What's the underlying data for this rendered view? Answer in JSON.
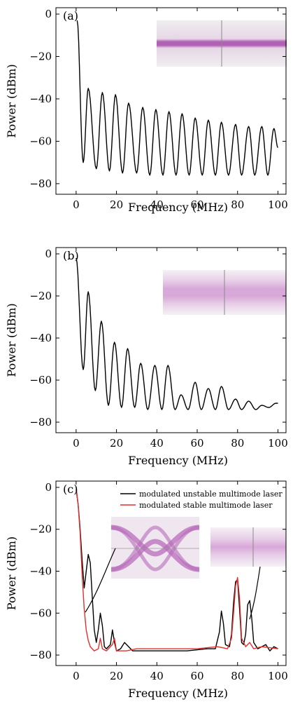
{
  "chart_data": [
    {
      "type": "line",
      "panel_label": "(a)",
      "xlabel": "Frequency (MHz)",
      "ylabel": "Power (dBm)",
      "xlim": [
        -10,
        104
      ],
      "ylim": [
        -85,
        3
      ],
      "xticks": [
        0,
        20,
        40,
        60,
        80,
        100
      ],
      "yticks": [
        0,
        -20,
        -40,
        -60,
        -80
      ],
      "inset": "eye-narrow-band",
      "series": [
        {
          "color": "#000000",
          "peaks": [
            [
              0.5,
              -3
            ],
            [
              6,
              -35
            ],
            [
              13,
              -37
            ],
            [
              19.5,
              -38
            ],
            [
              26,
              -42
            ],
            [
              33,
              -44
            ],
            [
              39.5,
              -45
            ],
            [
              46,
              -46
            ],
            [
              52.5,
              -47
            ],
            [
              59,
              -49
            ],
            [
              65.5,
              -50
            ],
            [
              72,
              -51
            ],
            [
              79,
              -52
            ],
            [
              85.5,
              -53
            ],
            [
              92,
              -53
            ],
            [
              98,
              -54
            ]
          ],
          "troughs": [
            [
              3.5,
              -70
            ],
            [
              10,
              -73
            ],
            [
              16.5,
              -74
            ],
            [
              23,
              -75
            ],
            [
              30,
              -75
            ],
            [
              36.5,
              -76
            ],
            [
              43,
              -76
            ],
            [
              49.5,
              -76
            ],
            [
              56,
              -76
            ],
            [
              62.5,
              -76
            ],
            [
              69,
              -76
            ],
            [
              75.5,
              -76
            ],
            [
              82,
              -76
            ],
            [
              88.5,
              -76
            ],
            [
              95,
              -76
            ]
          ],
          "end": [
            100,
            -63
          ]
        }
      ]
    },
    {
      "type": "line",
      "panel_label": "(b)",
      "xlabel": "Frequency (MHz)",
      "ylabel": "Power (dBm)",
      "xlim": [
        -10,
        104
      ],
      "ylim": [
        -85,
        3
      ],
      "xticks": [
        0,
        20,
        40,
        60,
        80,
        100
      ],
      "yticks": [
        0,
        -20,
        -40,
        -60,
        -80
      ],
      "inset": "eye-diffuse-band",
      "series": [
        {
          "color": "#000000",
          "peaks": [
            [
              0,
              -2
            ],
            [
              6,
              -18
            ],
            [
              12.5,
              -32
            ],
            [
              19,
              -42
            ],
            [
              25.5,
              -45
            ],
            [
              32,
              -52
            ],
            [
              39,
              -53
            ],
            [
              45.5,
              -53
            ],
            [
              52,
              -67
            ],
            [
              59,
              -61
            ],
            [
              65.5,
              -64
            ],
            [
              72,
              -63
            ],
            [
              79,
              -69
            ],
            [
              85.5,
              -70
            ],
            [
              92,
              -72
            ],
            [
              99,
              -71
            ]
          ],
          "troughs": [
            [
              3.5,
              -55
            ],
            [
              9.5,
              -65
            ],
            [
              16,
              -72
            ],
            [
              22.5,
              -73
            ],
            [
              29,
              -73
            ],
            [
              35.5,
              -74
            ],
            [
              42.5,
              -74
            ],
            [
              49,
              -74
            ],
            [
              55.5,
              -74
            ],
            [
              62,
              -74
            ],
            [
              69,
              -74
            ],
            [
              75.5,
              -74
            ],
            [
              82,
              -74
            ],
            [
              89,
              -74
            ],
            [
              95.5,
              -73
            ]
          ],
          "end": [
            100,
            -71
          ]
        }
      ]
    },
    {
      "type": "line",
      "panel_label": "(c)",
      "xlabel": "Frequency (MHz)",
      "ylabel": "Power (dBm)",
      "xlim": [
        -10,
        104
      ],
      "ylim": [
        -85,
        3
      ],
      "xticks": [
        0,
        20,
        40,
        60,
        80,
        100
      ],
      "yticks": [
        0,
        -20,
        -40,
        -60,
        -80
      ],
      "legend_position": "top-right",
      "insets": [
        "eye-open-diagram",
        "eye-closed-band"
      ],
      "series": [
        {
          "name": "modulated unstable multimode laser",
          "color": "#000000",
          "points": [
            [
              0,
              -1
            ],
            [
              1,
              -8
            ],
            [
              2,
              -20
            ],
            [
              3,
              -35
            ],
            [
              4,
              -48
            ],
            [
              5,
              -40
            ],
            [
              6,
              -32
            ],
            [
              7,
              -36
            ],
            [
              8,
              -52
            ],
            [
              9,
              -68
            ],
            [
              10,
              -74
            ],
            [
              11,
              -68
            ],
            [
              12,
              -60
            ],
            [
              13,
              -66
            ],
            [
              14,
              -76
            ],
            [
              15,
              -77
            ],
            [
              17,
              -75
            ],
            [
              18,
              -68
            ],
            [
              19,
              -74
            ],
            [
              20,
              -78
            ],
            [
              22,
              -77
            ],
            [
              24,
              -74
            ],
            [
              26,
              -76
            ],
            [
              28,
              -78
            ],
            [
              35,
              -78
            ],
            [
              45,
              -78
            ],
            [
              55,
              -78
            ],
            [
              65,
              -77
            ],
            [
              69,
              -77
            ],
            [
              71,
              -69
            ],
            [
              72,
              -59
            ],
            [
              73,
              -65
            ],
            [
              74,
              -75
            ],
            [
              76,
              -76
            ],
            [
              77,
              -70
            ],
            [
              78,
              -55
            ],
            [
              79,
              -45
            ],
            [
              80,
              -44
            ],
            [
              81,
              -58
            ],
            [
              82,
              -74
            ],
            [
              83,
              -75
            ],
            [
              84,
              -70
            ],
            [
              85,
              -56
            ],
            [
              86,
              -54
            ],
            [
              87,
              -62
            ],
            [
              88,
              -74
            ],
            [
              90,
              -77
            ],
            [
              92,
              -76
            ],
            [
              94,
              -75
            ],
            [
              96,
              -78
            ],
            [
              98,
              -76
            ],
            [
              100,
              -77
            ]
          ]
        },
        {
          "name": "modulated stable multimode laser",
          "color": "#e0302f",
          "points": [
            [
              0,
              0
            ],
            [
              1,
              -8
            ],
            [
              2,
              -22
            ],
            [
              3,
              -42
            ],
            [
              4,
              -58
            ],
            [
              5,
              -68
            ],
            [
              6,
              -73
            ],
            [
              7,
              -76
            ],
            [
              9,
              -78
            ],
            [
              11,
              -77
            ],
            [
              12,
              -72
            ],
            [
              13,
              -77
            ],
            [
              15,
              -78
            ],
            [
              18,
              -75
            ],
            [
              19,
              -72
            ],
            [
              20,
              -78
            ],
            [
              25,
              -78
            ],
            [
              30,
              -77
            ],
            [
              40,
              -77
            ],
            [
              50,
              -77
            ],
            [
              60,
              -77
            ],
            [
              70,
              -76
            ],
            [
              75,
              -77
            ],
            [
              77,
              -72
            ],
            [
              78,
              -60
            ],
            [
              79,
              -47
            ],
            [
              80,
              -43
            ],
            [
              81,
              -53
            ],
            [
              82,
              -72
            ],
            [
              84,
              -76
            ],
            [
              86,
              -74
            ],
            [
              88,
              -77
            ],
            [
              92,
              -76
            ],
            [
              100,
              -77
            ]
          ]
        }
      ]
    }
  ]
}
